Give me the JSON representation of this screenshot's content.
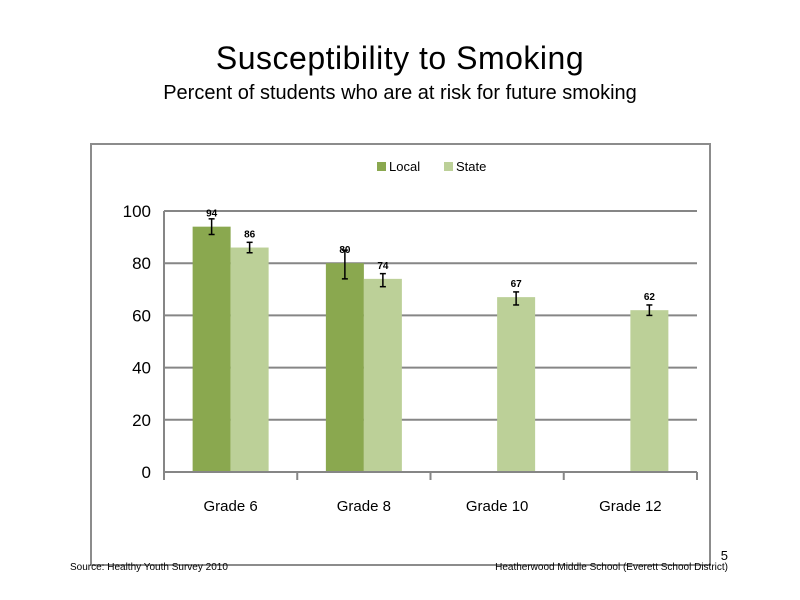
{
  "slide": {
    "title": "Susceptibility  to  Smoking",
    "subtitle": "Percent  of students  who  are at risk  for future  smoking",
    "source": "Source: Healthy  Youth Survey 2010",
    "school": "Heatherwood Middle  School  (Everett School District)",
    "page_number": "5"
  },
  "chart_data": {
    "type": "bar",
    "categories": [
      "Grade 6",
      "Grade 8",
      "Grade 10",
      "Grade 12"
    ],
    "series": [
      {
        "name": "Local",
        "color": "#8aa84f",
        "values": [
          94,
          80,
          null,
          null
        ],
        "error_low": [
          91,
          74,
          null,
          null
        ],
        "error_high": [
          97,
          85,
          null,
          null
        ]
      },
      {
        "name": "State",
        "color": "#bcd098",
        "values": [
          86,
          74,
          67,
          62
        ],
        "error_low": [
          84,
          71,
          64,
          60
        ],
        "error_high": [
          88,
          76,
          69,
          64
        ]
      }
    ],
    "ylim": [
      0,
      100
    ],
    "yticks": [
      0,
      20,
      40,
      60,
      80,
      100
    ],
    "grid": true,
    "legend_position": "top-center"
  }
}
